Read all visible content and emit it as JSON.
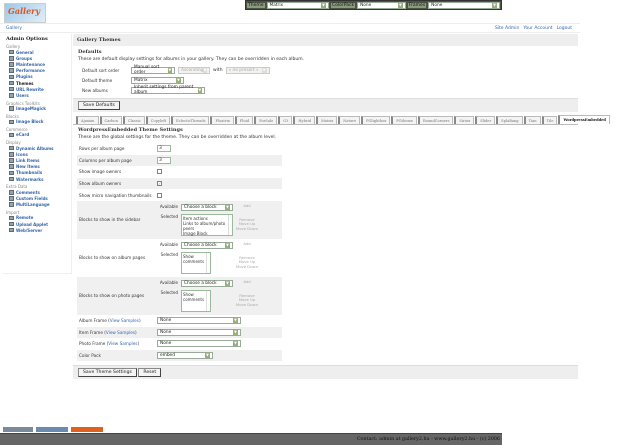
{
  "logo": "Gallery",
  "topbar": {
    "theme_label": "Theme",
    "theme_value": "Matrix",
    "colorpack_label": "ColorPack",
    "colorpack_value": "None",
    "frames_label": "Frames",
    "frames_value": "None"
  },
  "breadcrumb": "Gallery",
  "header_links": [
    "Site Admin",
    "Your Account",
    "Logout"
  ],
  "sidebar": {
    "title": "Admin Options",
    "groups": [
      {
        "name": "Gallery",
        "items": [
          "General",
          "Groups",
          "Maintenance",
          "Performance",
          "Plugins",
          "Themes",
          "URL Rewrite",
          "Users"
        ]
      },
      {
        "name": "Graphics Toolkits",
        "items": [
          "ImageMagick"
        ]
      },
      {
        "name": "Blocks",
        "items": [
          "Image Block"
        ]
      },
      {
        "name": "Commerce",
        "items": [
          "eCard"
        ]
      },
      {
        "name": "Display",
        "items": [
          "Dynamic Albums",
          "Icons",
          "Link Items",
          "New Items",
          "Thumbnails",
          "Watermarks"
        ]
      },
      {
        "name": "Extra Data",
        "items": [
          "Comments",
          "Custom Fields",
          "MultiLanguage"
        ]
      },
      {
        "name": "Import",
        "items": [
          "Remote",
          "Upload Applet",
          "Web/Server"
        ]
      }
    ],
    "current": "Themes"
  },
  "page_title": "Gallery Themes",
  "defaults": {
    "title": "Defaults",
    "desc": "These are default display settings for albums in your gallery. They can be overridden in each album.",
    "sort_label": "Default sort order",
    "sort_value": "Manual sort order",
    "sort_dir": "Ascending",
    "with_label": "with",
    "presort": "« no presort »",
    "theme_label": "Default theme",
    "theme_value": "Matrix",
    "new_label": "New albums",
    "new_value": "Inherit settings from parent album",
    "save": "Save Defaults"
  },
  "tabs": [
    "Ajaxian",
    "Carbon",
    "Classic",
    "Copyleft",
    "EclecticThreads",
    "Floatrix",
    "Fluid",
    "ForSale",
    "G3",
    "Hybrid",
    "Matrix",
    "Nature",
    "PGlightbox",
    "PGtheme",
    "RoundCorners",
    "Siriux",
    "Slider",
    "SplaBang",
    "Tian",
    "Tile",
    "WordpressEmbedded"
  ],
  "active_tab": "WordpressEmbedded",
  "settings": {
    "title": "WordpressEmbedded Theme Settings",
    "desc": "These are the global settings for the theme. They can be overridden at the album level.",
    "rows_label": "Rows per album page",
    "rows": "3",
    "cols_label": "Columns per album page",
    "cols": "3",
    "image_owners_label": "Show image owners",
    "image_owners": false,
    "album_owners_label": "Show album owners",
    "album_owners": true,
    "micro_label": "Show micro navigation thumbnails",
    "micro": false,
    "available": "Available",
    "selected": "Selected",
    "choose": "Choose a block",
    "add": "Add",
    "remove": "Remove",
    "up": "Move Up",
    "down": "Move Down",
    "sidebar_label": "Blocks to show in the sidebar",
    "sidebar_blocks": [
      "Item actions",
      "Links to album/photo peers",
      "Image Block"
    ],
    "album_label": "Blocks to show on album pages",
    "album_blocks": [
      "Show comments"
    ],
    "photo_label": "Blocks to show on photo pages",
    "photo_blocks": [
      "Show comments"
    ],
    "view_samples": "View Samples",
    "album_frame_label": "Album Frame",
    "album_frame": "None",
    "item_frame_label": "Item Frame",
    "item_frame": "None",
    "photo_frame_label": "Photo Frame",
    "photo_frame": "None",
    "colorpack_label": "Color Pack",
    "colorpack": "embed",
    "save": "Save Theme Settings",
    "reset": "Reset"
  },
  "badges": [
    "W3C XHTML 1.0",
    "FIREFOX 2",
    "MADE WITH GALLERY"
  ],
  "footer": "Contact: admin at gallery2.hu - www.gallery2.hu - (c) 2006"
}
